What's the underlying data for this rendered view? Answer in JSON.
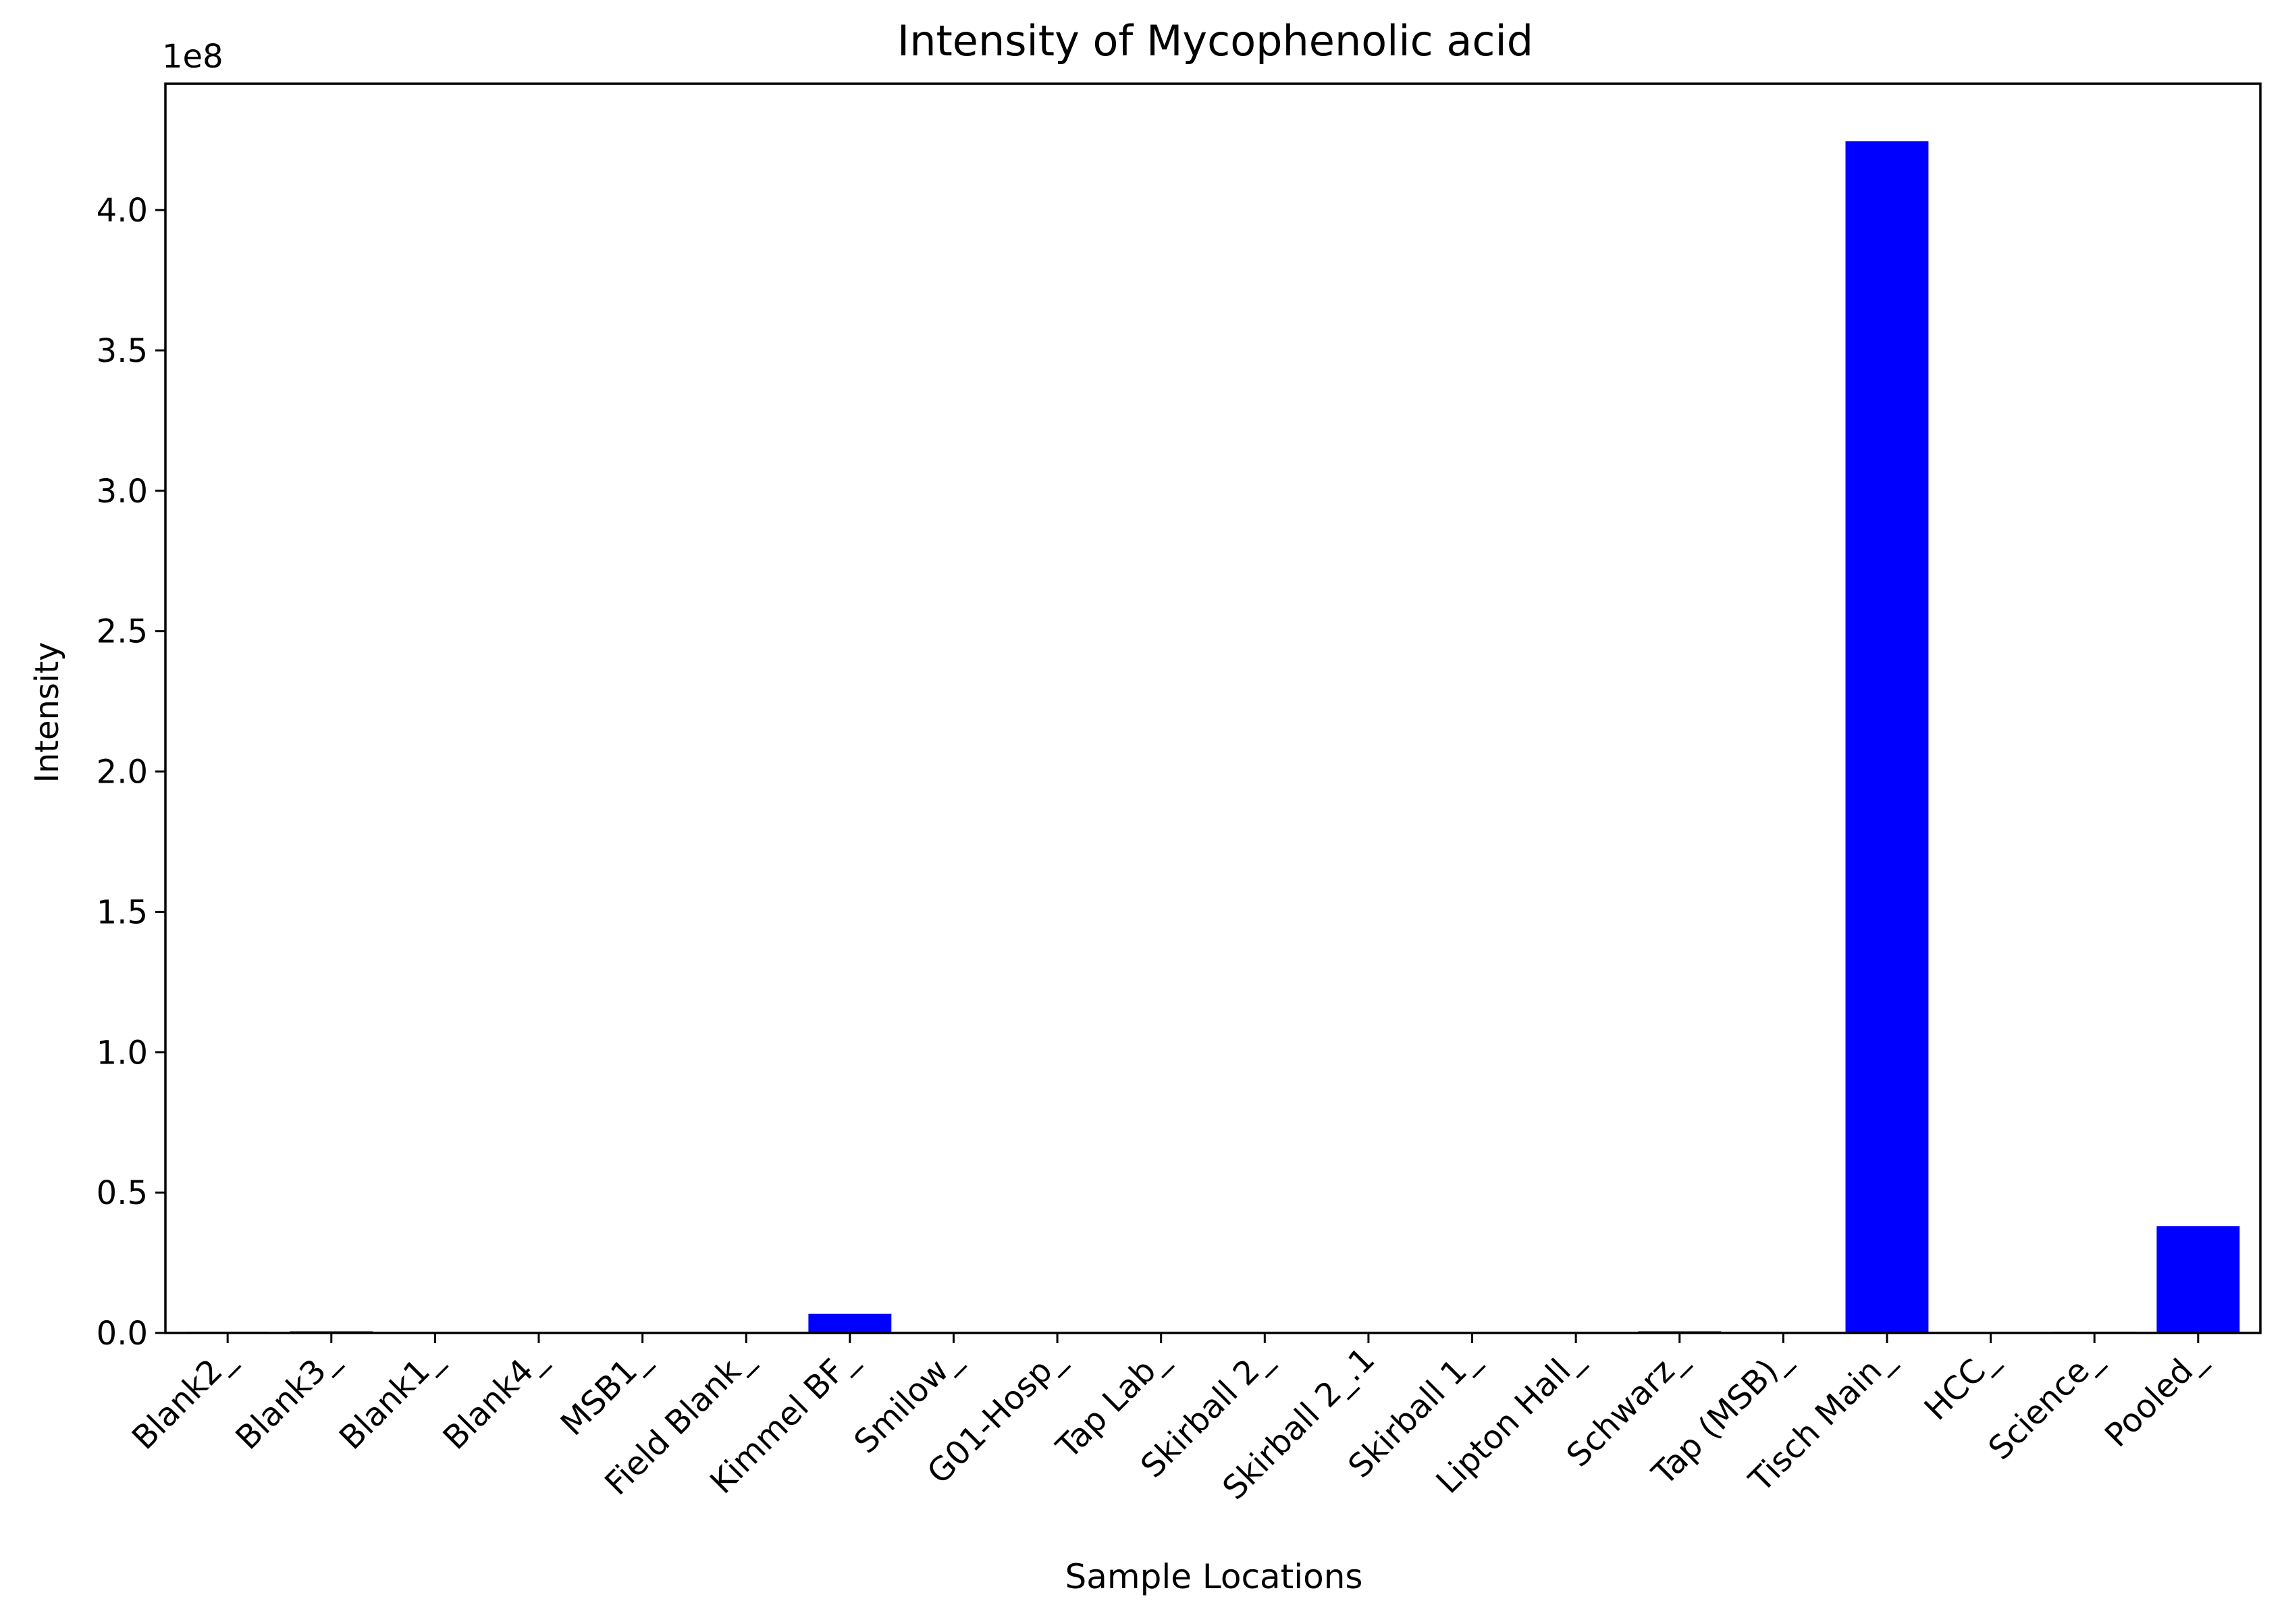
{
  "colors": {
    "bar": "#0000ff",
    "axis": "#000000",
    "background": "#ffffff"
  },
  "chart_data": {
    "type": "bar",
    "title": "Intensity of Mycophenolic acid",
    "xlabel": "Sample Locations",
    "ylabel": "Intensity",
    "offset_text": "1e8",
    "scale": 100000000,
    "ylim": [
      0,
      4.45
    ],
    "yticks": [
      "0.0",
      "0.5",
      "1.0",
      "1.5",
      "2.0",
      "2.5",
      "3.0",
      "3.5",
      "4.0"
    ],
    "grid": false,
    "legend": "none",
    "categories": [
      "Blank2_",
      "Blank3_",
      "Blank1_",
      "Blank4_",
      "MSB1_",
      "Field Blank_",
      "Kimmel BF_",
      "Smilow_",
      "G01-Hosp_",
      "Tap Lab_",
      "Skirball 2_",
      "Skirball 2_.1",
      "Skirball 1_",
      "Lipton Hall_",
      "Schwarz_",
      "Tap (MSB)_",
      "Tisch Main_",
      "HCC_",
      "Science_",
      "Pooled_"
    ],
    "values": [
      0.004,
      0.006,
      0.0,
      0.0,
      0.0,
      0.0,
      0.068,
      0.0,
      0.0,
      0.0,
      0.0,
      0.0,
      0.0,
      0.0,
      0.006,
      0.0,
      4.245,
      0.0,
      0.004,
      0.38
    ]
  }
}
